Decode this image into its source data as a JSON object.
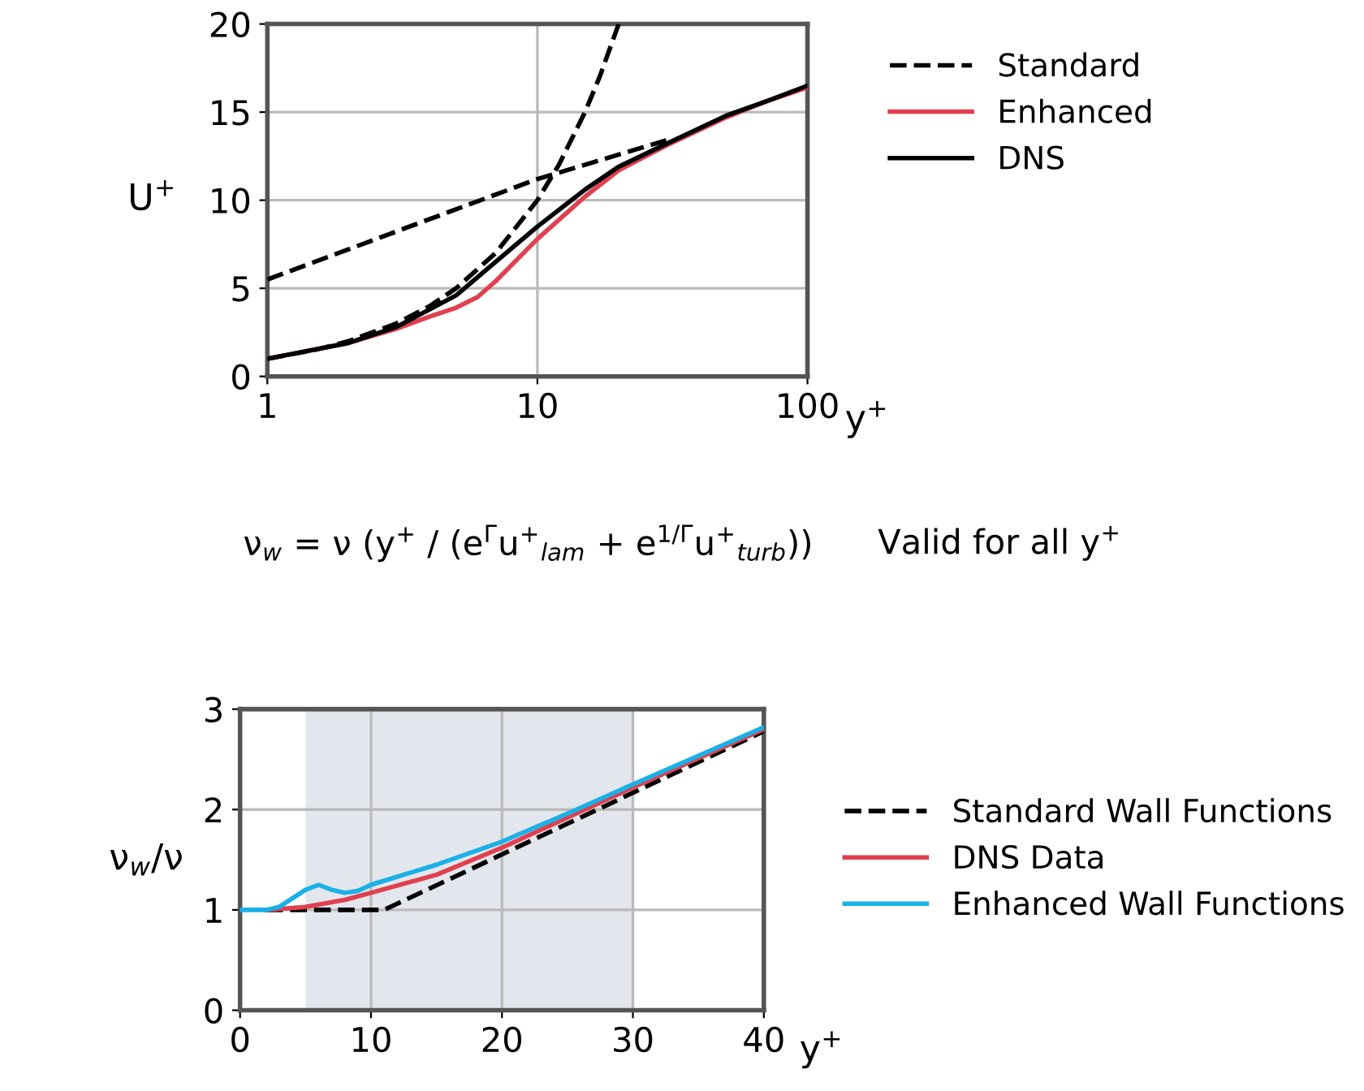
{
  "chart_data": [
    {
      "type": "line",
      "ylabel": "U$^{+}$",
      "xlabel": "y$^{+}$",
      "log": "x",
      "xlim": [
        1,
        100
      ],
      "ylim": [
        0,
        20
      ],
      "xticks": [
        1,
        10,
        100
      ],
      "yticks": [
        0,
        5,
        10,
        15,
        20
      ],
      "grid": true,
      "legend": "top right",
      "series": [
        {
          "name": "Standard",
          "color": "#000000",
          "line_style": "dashed",
          "x": [
            1,
            1.5,
            2,
            3,
            4,
            5,
            7,
            10,
            12,
            15,
            17,
            20
          ],
          "values": [
            1,
            1.5,
            2,
            3,
            4,
            5,
            7,
            10,
            12,
            15,
            17,
            20
          ]
        },
        {
          "color": "#000000",
          "line_style": "dashed",
          "x": [
            1,
            10,
            30
          ],
          "values": [
            5.5,
            11.2,
            13.4
          ]
        },
        {
          "name": "Enhanced",
          "color": "#e0404f",
          "line_style": "solid",
          "x": [
            1,
            2,
            3,
            4,
            5,
            6,
            7,
            10,
            15,
            20,
            30,
            50,
            70,
            100
          ],
          "values": [
            1,
            1.9,
            2.7,
            3.4,
            3.9,
            4.5,
            5.4,
            7.8,
            10.2,
            11.7,
            13.1,
            14.7,
            15.6,
            16.4
          ]
        },
        {
          "name": "DNS",
          "color": "#000000",
          "line_style": "solid",
          "x": [
            1,
            2,
            3,
            5,
            7,
            10,
            15,
            20,
            30,
            50,
            70,
            100
          ],
          "values": [
            1,
            1.9,
            2.8,
            4.6,
            6.5,
            8.5,
            10.6,
            11.9,
            13.2,
            14.8,
            15.6,
            16.5
          ]
        }
      ]
    },
    {
      "type": "line",
      "ylabel": "ν$_{w}$/ν",
      "xlabel": "y$^{+}$",
      "xlim": [
        0,
        40
      ],
      "ylim": [
        0,
        3
      ],
      "xticks": [
        0,
        10,
        20,
        30,
        40
      ],
      "yticks": [
        0,
        1,
        2,
        3
      ],
      "grid": true,
      "legend": "right",
      "bands": [
        {
          "axis": "x",
          "from": 5,
          "to": 30,
          "color": "#e3e6ec"
        }
      ],
      "annotations": [
        "ν$_{w}$ = ν (y$^{+}$ / (e$^{Γ}$u$^{+}$$_{lam}$ + e$^{1/Γ}$u$^{+}$$_{turb}$))",
        "Valid for all y$^{+}$"
      ],
      "series": [
        {
          "name": "Standard Wall Functions",
          "color": "#000000",
          "line_style": "dashed",
          "x": [
            2,
            11,
            40
          ],
          "values": [
            1,
            1,
            2.78
          ]
        },
        {
          "name": "DNS Data",
          "color": "#e0404f",
          "line_style": "solid",
          "x": [
            2,
            5,
            8,
            10,
            15,
            20,
            25,
            30,
            40
          ],
          "values": [
            1,
            1.03,
            1.1,
            1.17,
            1.35,
            1.62,
            1.92,
            2.22,
            2.8
          ]
        },
        {
          "name": "Enhanced Wall Functions",
          "color": "#1ab0e8",
          "line_style": "solid",
          "x": [
            0,
            2,
            3,
            5,
            6,
            7,
            8,
            9,
            10,
            15,
            20,
            25,
            30,
            40
          ],
          "values": [
            1,
            1,
            1.03,
            1.2,
            1.25,
            1.2,
            1.17,
            1.19,
            1.25,
            1.45,
            1.68,
            1.96,
            2.25,
            2.82
          ]
        }
      ]
    }
  ]
}
